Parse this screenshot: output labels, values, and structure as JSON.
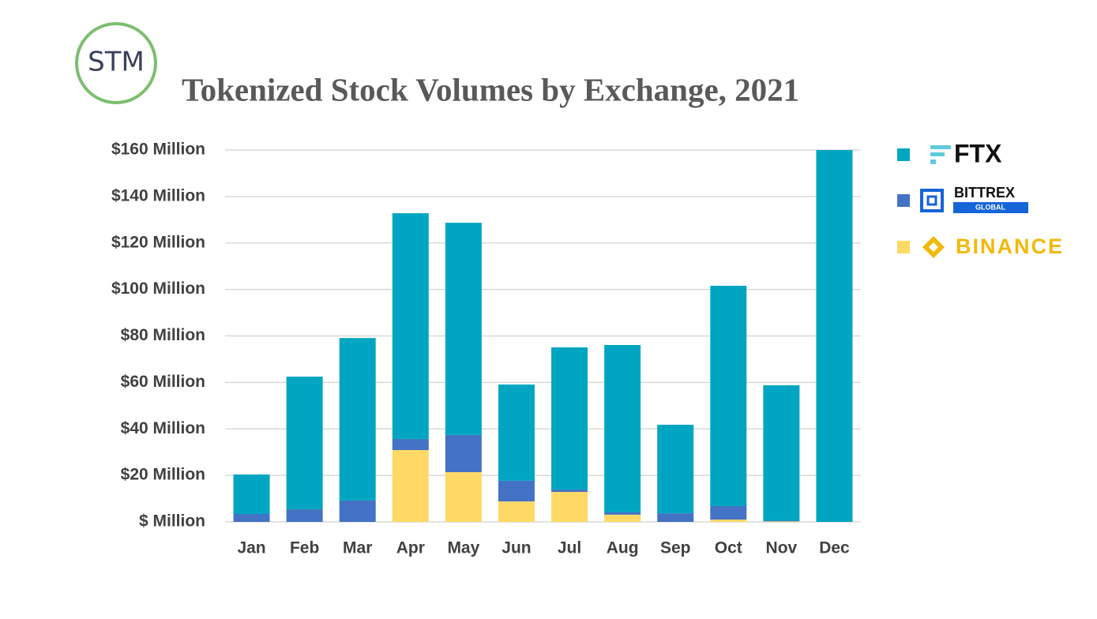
{
  "logo": "STM",
  "chart_data": {
    "type": "stacked-bar",
    "title": "Tokenized Stock Volumes by Exchange, 2021",
    "categories": [
      "Jan",
      "Feb",
      "Mar",
      "Apr",
      "May",
      "Jun",
      "Jul",
      "Aug",
      "Sep",
      "Oct",
      "Nov",
      "Dec"
    ],
    "series": [
      {
        "name": "FTX",
        "color": "#00a6c1",
        "values": [
          17,
          57.1,
          69.9,
          97.1,
          91.3,
          41.4,
          61.2,
          72,
          38.1,
          94.8,
          58.3,
          160
        ]
      },
      {
        "name": "BITTREX",
        "sublabel": "GLOBAL",
        "color": "#4472c4",
        "values": [
          3.4,
          5.4,
          9.2,
          4.8,
          16,
          8.9,
          1,
          1,
          3.7,
          5.8,
          0.3,
          0
        ]
      },
      {
        "name": "BINANCE",
        "color": "#ffd966",
        "values": [
          0,
          0,
          0,
          30.9,
          21.4,
          8.8,
          12.9,
          3.1,
          0,
          1,
          0.2,
          0
        ]
      }
    ],
    "ylim": [
      0,
      160
    ],
    "yticks": [
      {
        "value": 0,
        "label": "$ Million"
      },
      {
        "value": 20,
        "label": "$20 Million"
      },
      {
        "value": 40,
        "label": "$40 Million"
      },
      {
        "value": 60,
        "label": "$60 Million"
      },
      {
        "value": 80,
        "label": "$80 Million"
      },
      {
        "value": 100,
        "label": "$100 Million"
      },
      {
        "value": 120,
        "label": "$120 Million"
      },
      {
        "value": 140,
        "label": "$140 Million"
      },
      {
        "value": 160,
        "label": "$160 Million"
      }
    ],
    "grid": true
  }
}
